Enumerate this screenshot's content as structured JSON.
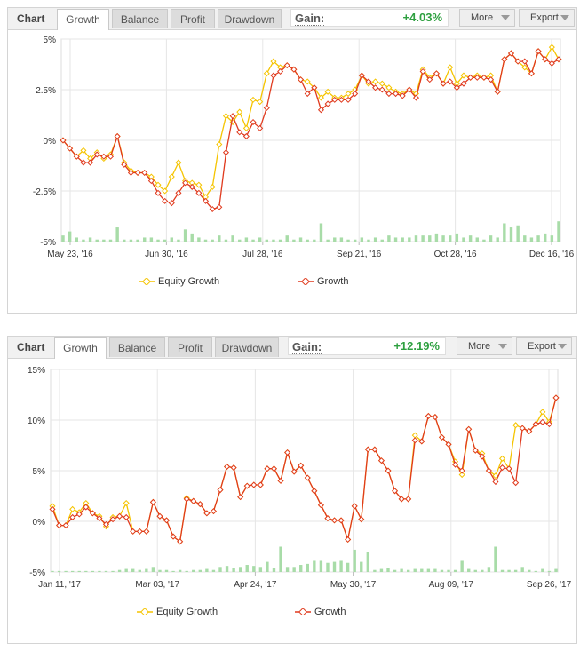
{
  "colors": {
    "equity": "#f5c400",
    "growth": "#e03a1e",
    "bars": "#a8dca8",
    "grid": "#e6e6e6",
    "gain": "#2ea040"
  },
  "panels": [
    {
      "tabs": {
        "chart": "Chart",
        "growth": "Growth",
        "balance": "Balance",
        "profit": "Profit",
        "drawdown": "Drawdown"
      },
      "gain_label": "Gain:",
      "gain_value": "+4.03%",
      "more_label": "More",
      "export_label": "Export",
      "legend": {
        "equity": "Equity Growth",
        "growth": "Growth"
      }
    },
    {
      "tabs": {
        "chart": "Chart",
        "growth": "Growth",
        "balance": "Balance",
        "profit": "Profit",
        "drawdown": "Drawdown"
      },
      "gain_label": "Gain:",
      "gain_value": "+12.19%",
      "more_label": "More",
      "export_label": "Export",
      "legend": {
        "equity": "Equity Growth",
        "growth": "Growth"
      }
    }
  ],
  "chart_data": [
    {
      "type": "line",
      "y_ticks": [
        "5%",
        "2.5%",
        "0%",
        "-2.5%",
        "-5%"
      ],
      "y_tick_values": [
        5,
        2.5,
        0,
        -2.5,
        -5
      ],
      "ylim": [
        -5,
        5
      ],
      "x_ticks": [
        "May 23, '16",
        "Jun 30, '16",
        "Jul 28, '16",
        "Sep 21, '16",
        "Oct 28, '16",
        "Dec 16, '16"
      ],
      "series": [
        {
          "name": "Equity Growth",
          "values": [
            0,
            -0.4,
            -0.8,
            -0.5,
            -0.9,
            -0.6,
            -0.9,
            -0.7,
            0.2,
            -1.1,
            -1.5,
            -1.6,
            -1.6,
            -1.8,
            -2.2,
            -2.5,
            -1.8,
            -1.1,
            -2.0,
            -2.1,
            -2.2,
            -2.8,
            -2.3,
            -0.2,
            1.2,
            0.9,
            1.4,
            0.6,
            2.0,
            1.9,
            3.3,
            3.9,
            3.6,
            3.7,
            3.5,
            3.0,
            2.9,
            2.6,
            2.1,
            2.4,
            2.1,
            2.1,
            2.3,
            2.5,
            3.2,
            2.8,
            2.9,
            2.8,
            2.6,
            2.4,
            2.3,
            2.5,
            2.3,
            3.5,
            3.1,
            3.3,
            2.8,
            3.6,
            2.8,
            3.2,
            3.1,
            3.2,
            3.1,
            3.2,
            2.4,
            4.0,
            4.3,
            3.9,
            3.6,
            3.3,
            4.4,
            4.0,
            4.6,
            4.0
          ]
        },
        {
          "name": "Growth",
          "values": [
            0,
            -0.4,
            -0.8,
            -1.1,
            -1.1,
            -0.7,
            -0.8,
            -0.8,
            0.2,
            -1.2,
            -1.6,
            -1.6,
            -1.6,
            -2.0,
            -2.6,
            -3.0,
            -3.1,
            -2.6,
            -2.1,
            -2.3,
            -2.6,
            -3.0,
            -3.4,
            -3.3,
            -0.6,
            1.2,
            0.4,
            0.2,
            0.9,
            0.6,
            1.6,
            3.2,
            3.4,
            3.7,
            3.5,
            3.0,
            2.3,
            2.6,
            1.5,
            1.8,
            2.0,
            2.0,
            2.0,
            2.3,
            3.2,
            2.9,
            2.6,
            2.5,
            2.3,
            2.3,
            2.2,
            2.5,
            2.1,
            3.4,
            3.0,
            3.3,
            2.8,
            2.9,
            2.6,
            2.8,
            3.1,
            3.1,
            3.1,
            3.0,
            2.4,
            4.0,
            4.3,
            3.9,
            3.9,
            3.3,
            4.4,
            4.0,
            3.8,
            4.0
          ]
        },
        {
          "name": "bars",
          "values": [
            0.3,
            0.5,
            0.2,
            0.1,
            0.2,
            0.1,
            0.1,
            0.1,
            0.7,
            0.1,
            0.1,
            0.1,
            0.2,
            0.2,
            0.1,
            0.1,
            0.2,
            0.1,
            0.6,
            0.4,
            0.2,
            0.1,
            0.1,
            0.3,
            0.1,
            0.3,
            0.1,
            0.2,
            0.1,
            0.2,
            0.1,
            0.1,
            0.1,
            0.3,
            0.1,
            0.2,
            0.1,
            0.1,
            0.9,
            0.1,
            0.2,
            0.2,
            0.1,
            0.1,
            0.2,
            0.1,
            0.2,
            0.1,
            0.3,
            0.2,
            0.2,
            0.2,
            0.3,
            0.3,
            0.3,
            0.4,
            0.3,
            0.3,
            0.4,
            0.2,
            0.3,
            0.2,
            0.1,
            0.3,
            0.2,
            0.9,
            0.7,
            0.8,
            0.3,
            0.2,
            0.3,
            0.4,
            0.3,
            1.0
          ]
        }
      ]
    },
    {
      "type": "line",
      "y_ticks": [
        "15%",
        "10%",
        "5%",
        "0%",
        "-5%"
      ],
      "y_tick_values": [
        15,
        10,
        5,
        0,
        -5
      ],
      "ylim": [
        -5,
        15
      ],
      "x_ticks": [
        "Jan 11, '17",
        "Mar 03, '17",
        "Apr 24, '17",
        "May 30, '17",
        "Aug 09, '17",
        "Sep 26, '17"
      ],
      "series": [
        {
          "name": "Equity Growth",
          "values": [
            1.5,
            -0.4,
            -0.4,
            1.2,
            0.9,
            1.8,
            0.8,
            0.5,
            -0.5,
            0.4,
            0.5,
            1.8,
            -1.0,
            -1.0,
            -1.0,
            1.9,
            0.5,
            0.1,
            -1.5,
            -2.0,
            2.3,
            2.0,
            1.7,
            0.8,
            1.0,
            3.1,
            5.4,
            5.3,
            2.4,
            3.5,
            3.6,
            3.6,
            5.2,
            5.2,
            4.0,
            6.8,
            4.9,
            5.5,
            4.3,
            3.0,
            1.6,
            0.3,
            0.1,
            0.1,
            -1.8,
            1.5,
            0.2,
            7.1,
            7.1,
            6.0,
            5.0,
            3.0,
            2.2,
            2.2,
            8.5,
            7.9,
            10.4,
            10.3,
            8.3,
            7.6,
            5.9,
            4.6,
            9.1,
            7.0,
            6.7,
            5.0,
            4.5,
            6.2,
            5.2,
            9.5,
            9.2,
            8.9,
            9.6,
            10.8,
            9.8,
            12.2
          ]
        },
        {
          "name": "Growth",
          "values": [
            1.2,
            -0.4,
            -0.4,
            0.4,
            0.7,
            1.4,
            0.8,
            0.3,
            -0.3,
            0.2,
            0.5,
            0.4,
            -1.0,
            -1.0,
            -1.0,
            1.9,
            0.5,
            0.1,
            -1.5,
            -2.0,
            2.2,
            2.0,
            1.7,
            0.8,
            1.0,
            3.1,
            5.4,
            5.3,
            2.4,
            3.5,
            3.6,
            3.6,
            5.2,
            5.2,
            4.0,
            6.8,
            4.9,
            5.5,
            4.3,
            3.0,
            1.6,
            0.3,
            0.1,
            0.1,
            -1.8,
            1.5,
            0.2,
            7.1,
            7.1,
            6.0,
            5.0,
            3.0,
            2.2,
            2.2,
            8.0,
            7.9,
            10.4,
            10.3,
            8.3,
            7.6,
            5.6,
            5.0,
            9.1,
            7.0,
            6.4,
            5.0,
            3.9,
            5.3,
            5.2,
            3.8,
            9.2,
            8.9,
            9.6,
            9.8,
            9.6,
            12.2
          ]
        },
        {
          "name": "bars",
          "values": [
            0.1,
            0.1,
            0.1,
            0.1,
            0.1,
            0.1,
            0.1,
            0.1,
            0.1,
            0.1,
            0.2,
            0.3,
            0.3,
            0.2,
            0.3,
            0.5,
            0.2,
            0.2,
            0.1,
            0.2,
            0.1,
            0.2,
            0.2,
            0.3,
            0.2,
            0.5,
            0.6,
            0.4,
            0.5,
            0.7,
            0.6,
            0.5,
            1.0,
            0.4,
            2.5,
            0.5,
            0.5,
            0.7,
            0.8,
            1.1,
            1.1,
            0.9,
            1.0,
            1.1,
            0.9,
            2.2,
            1.0,
            2.0,
            0.2,
            0.3,
            0.4,
            0.2,
            0.3,
            0.2,
            0.3,
            0.3,
            0.3,
            0.3,
            0.2,
            0.2,
            0.2,
            1.1,
            0.3,
            0.2,
            0.2,
            0.5,
            2.5,
            0.2,
            0.2,
            0.2,
            0.5,
            0.2,
            0.1,
            0.3,
            0.1,
            0.3
          ]
        }
      ]
    }
  ]
}
